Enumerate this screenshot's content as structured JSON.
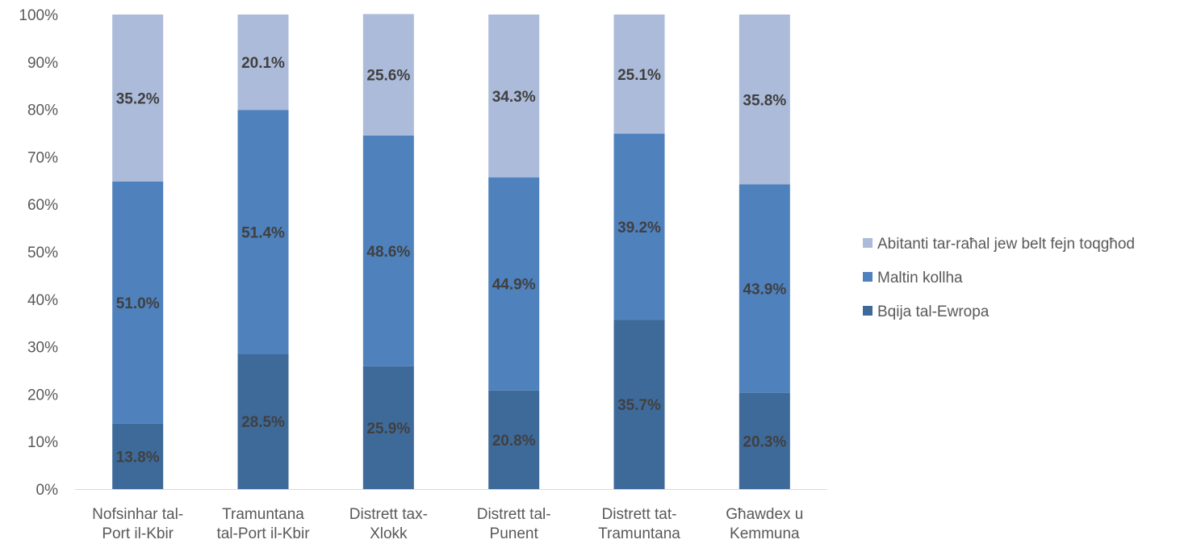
{
  "chart_data": {
    "type": "bar",
    "stacked": true,
    "percent_stacked": true,
    "categories": [
      [
        "Nofsinhar tal-",
        "Port il-Kbir"
      ],
      [
        "Tramuntana",
        "tal-Port il-Kbir"
      ],
      [
        "Distrett tax-",
        "Xlokk"
      ],
      [
        "Distrett tal-",
        "Punent"
      ],
      [
        "Distrett tat-",
        "Tramuntana"
      ],
      [
        "Għawdex u",
        "Kemmuna"
      ]
    ],
    "series": [
      {
        "name": "Bqija tal-Ewropa",
        "color": "#3e6a9a",
        "values": [
          13.8,
          28.5,
          25.9,
          20.8,
          35.7,
          20.3
        ],
        "labels": [
          "13.8%",
          "28.5%",
          "25.9%",
          "20.8%",
          "35.7%",
          "20.3%"
        ]
      },
      {
        "name": "Maltin kollha",
        "color": "#4f81bd",
        "values": [
          51.0,
          51.4,
          48.6,
          44.9,
          39.2,
          43.9
        ],
        "labels": [
          "51.0%",
          "51.4%",
          "48.6%",
          "44.9%",
          "39.2%",
          "43.9%"
        ]
      },
      {
        "name": "Abitanti tar-raħal jew belt fejn toqgħod",
        "color": "#abbbd9",
        "values": [
          35.2,
          20.1,
          25.6,
          34.3,
          25.1,
          35.8
        ],
        "labels": [
          "35.2%",
          "20.1%",
          "25.6%",
          "34.3%",
          "25.1%",
          "35.8%"
        ]
      }
    ],
    "y_ticks": [
      "0%",
      "10%",
      "20%",
      "30%",
      "40%",
      "50%",
      "60%",
      "70%",
      "80%",
      "90%",
      "100%"
    ],
    "ylim": [
      0,
      100
    ],
    "grid": false,
    "legend_position": "right",
    "legend_order": [
      2,
      1,
      0
    ]
  }
}
